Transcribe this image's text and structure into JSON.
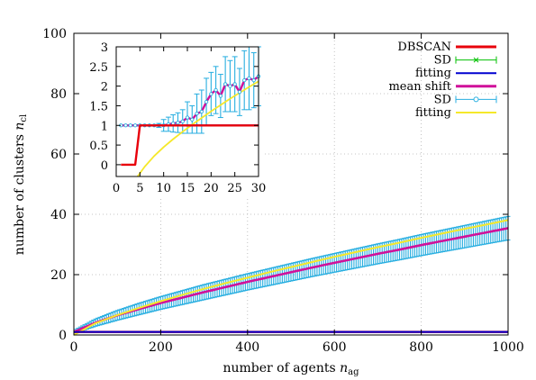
{
  "chart_data": [
    {
      "type": "line",
      "panel": "main",
      "xlabel": "number of agents",
      "xlabel_symbol": "n",
      "xlabel_sub": "ag",
      "ylabel": "number of clusters",
      "ylabel_symbol": "n",
      "ylabel_sub": "cl",
      "xlim": [
        0,
        1000
      ],
      "ylim": [
        0,
        100
      ],
      "xticks": [
        0,
        200,
        400,
        600,
        800,
        1000
      ],
      "yticks": [
        0,
        20,
        40,
        60,
        80,
        100
      ],
      "grid": true,
      "legend_position": "top-right",
      "series": [
        {
          "name": "DBSCAN",
          "role": "line",
          "color": "#e8000b",
          "x": [
            0,
            1000
          ],
          "y": [
            1,
            1
          ]
        },
        {
          "name": "SD",
          "role": "errorbars",
          "marker": "x",
          "color": "#00c000",
          "x": [
            0,
            1000
          ],
          "y": [
            1,
            1
          ],
          "err": 0
        },
        {
          "name": "fitting",
          "role": "line",
          "color": "#0000d0",
          "x": [
            0,
            1000
          ],
          "y": [
            1,
            1
          ]
        },
        {
          "name": "mean shift",
          "role": "line",
          "color": "#d0109a",
          "x": [
            0,
            50,
            100,
            150,
            200,
            250,
            300,
            350,
            400,
            450,
            500,
            550,
            600,
            650,
            700,
            750,
            800,
            850,
            900,
            950,
            1000
          ],
          "y": [
            1,
            4.1,
            6.5,
            8.6,
            10.6,
            12.4,
            14.2,
            15.9,
            17.6,
            19.2,
            20.8,
            22.4,
            23.9,
            25.4,
            26.9,
            28.3,
            29.8,
            31.2,
            32.6,
            34.0,
            35.4
          ]
        },
        {
          "name": "SD",
          "role": "errorbars",
          "marker": "o",
          "color": "#27aee0",
          "x": [
            0,
            50,
            100,
            150,
            200,
            250,
            300,
            350,
            400,
            450,
            500,
            550,
            600,
            650,
            700,
            750,
            800,
            850,
            900,
            950,
            1000
          ],
          "y": [
            1,
            4.1,
            6.5,
            8.6,
            10.6,
            12.4,
            14.2,
            15.9,
            17.6,
            19.2,
            20.8,
            22.4,
            23.9,
            25.4,
            26.9,
            28.3,
            29.8,
            31.2,
            32.6,
            34.0,
            35.4
          ],
          "err": [
            0.5,
            1.2,
            1.6,
            1.9,
            2.1,
            2.3,
            2.5,
            2.6,
            2.7,
            2.8,
            2.9,
            3.0,
            3.1,
            3.2,
            3.3,
            3.4,
            3.5,
            3.6,
            3.7,
            3.8,
            3.9
          ]
        },
        {
          "name": "fitting",
          "role": "line",
          "color": "#f5e82a",
          "x": [
            0,
            50,
            100,
            150,
            200,
            250,
            300,
            350,
            400,
            450,
            500,
            550,
            600,
            650,
            700,
            750,
            800,
            850,
            900,
            950,
            1000
          ],
          "y": [
            0,
            3.9,
            6.6,
            9.0,
            11.2,
            13.3,
            15.3,
            17.2,
            19.0,
            20.8,
            22.5,
            24.2,
            25.9,
            27.5,
            29.1,
            30.6,
            32.2,
            33.7,
            35.2,
            36.6,
            38.1
          ]
        }
      ]
    },
    {
      "type": "line",
      "panel": "inset",
      "xlim": [
        0,
        30
      ],
      "ylim": [
        -0.3,
        3
      ],
      "xticks": [
        0,
        5,
        10,
        15,
        20,
        25,
        30
      ],
      "yticks": [
        0,
        0.5,
        1,
        1.5,
        2,
        2.5,
        3
      ],
      "ytick_labels": [
        "0",
        "0.5",
        "1",
        "1.5",
        "2",
        "2.5",
        "3"
      ],
      "series": [
        {
          "name": "DBSCAN",
          "role": "line",
          "color": "#e8000b",
          "x": [
            1,
            2,
            3,
            4,
            5,
            30
          ],
          "y": [
            0,
            0,
            0,
            0,
            1,
            1
          ]
        },
        {
          "name": "fitting",
          "role": "line",
          "color": "#0000d0",
          "x": [
            1,
            30
          ],
          "y": [
            1,
            1
          ]
        },
        {
          "name": "mean shift",
          "role": "line",
          "color": "#d0109a",
          "x": [
            1,
            2,
            3,
            4,
            5,
            6,
            7,
            8,
            9,
            10,
            11,
            12,
            13,
            14,
            15,
            16,
            17,
            18,
            19,
            20,
            21,
            22,
            23,
            24,
            25,
            26,
            27,
            28,
            29,
            30
          ],
          "y": [
            1.0,
            1.0,
            1.0,
            1.0,
            1.0,
            1.0,
            1.0,
            1.0,
            1.0,
            1.0,
            1.03,
            1.05,
            1.07,
            1.1,
            1.2,
            1.15,
            1.3,
            1.35,
            1.6,
            1.8,
            1.9,
            1.75,
            2.05,
            2.0,
            2.05,
            1.85,
            2.15,
            2.2,
            2.15,
            2.25
          ]
        },
        {
          "name": "SD",
          "role": "errorbars",
          "color": "#27aee0",
          "x": [
            1,
            2,
            3,
            4,
            5,
            6,
            7,
            8,
            9,
            10,
            11,
            12,
            13,
            14,
            15,
            16,
            17,
            18,
            19,
            20,
            21,
            22,
            23,
            24,
            25,
            26,
            27,
            28,
            29,
            30
          ],
          "y": [
            1.0,
            1.0,
            1.0,
            1.0,
            1.0,
            1.0,
            1.0,
            1.0,
            1.0,
            1.0,
            1.03,
            1.05,
            1.07,
            1.1,
            1.2,
            1.15,
            1.3,
            1.35,
            1.6,
            1.8,
            1.9,
            1.75,
            2.05,
            2.0,
            2.05,
            1.85,
            2.15,
            2.2,
            2.15,
            2.25
          ],
          "err": [
            0,
            0,
            0,
            0,
            0,
            0,
            0,
            0,
            0.05,
            0.15,
            0.18,
            0.22,
            0.25,
            0.3,
            0.4,
            0.35,
            0.5,
            0.55,
            0.6,
            0.55,
            0.6,
            0.55,
            0.7,
            0.65,
            0.7,
            0.6,
            0.75,
            0.8,
            0.7,
            0.75
          ]
        },
        {
          "name": "fitting",
          "role": "line",
          "color": "#f5e82a",
          "x": [
            4.5,
            6,
            8,
            10,
            12,
            14,
            16,
            18,
            20,
            22,
            24,
            26,
            28,
            30
          ],
          "y": [
            -0.3,
            -0.05,
            0.22,
            0.45,
            0.65,
            0.84,
            1.02,
            1.19,
            1.36,
            1.52,
            1.68,
            1.83,
            1.98,
            2.12
          ]
        }
      ]
    }
  ]
}
